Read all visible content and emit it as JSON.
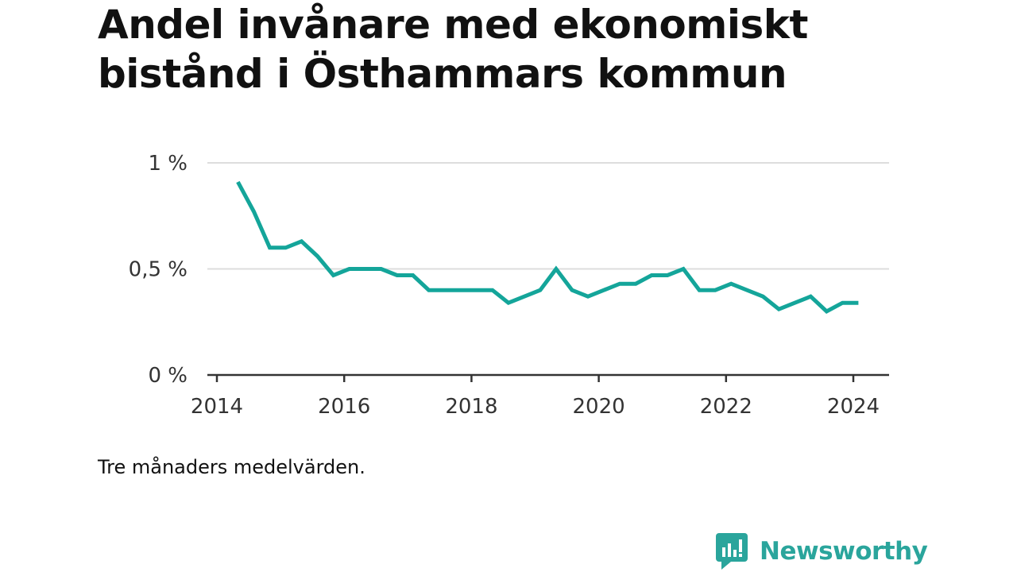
{
  "title": "Andel invånare med ekonomiskt bistånd i Östhammars kommun",
  "note": "Tre månaders medelvärden.",
  "brand": "Newsworthy",
  "colors": {
    "line": "#14a59a",
    "grid": "#dddddd",
    "axis": "#333333",
    "brand": "#2aa59c"
  },
  "chart_data": {
    "type": "line",
    "title": "Andel invånare med ekonomiskt bistånd i Östhammars kommun",
    "xlabel": "",
    "ylabel": "",
    "xlim": [
      2014,
      2024.6
    ],
    "ylim": [
      0,
      1
    ],
    "grid": true,
    "x_ticks": [
      2014,
      2016,
      2018,
      2020,
      2022,
      2024
    ],
    "x_tick_labels": [
      "2014",
      "2016",
      "2018",
      "2020",
      "2022",
      "2024"
    ],
    "y_ticks": [
      0,
      0.5,
      1
    ],
    "y_tick_labels": [
      "0 %",
      "0,5 %",
      "1 %"
    ],
    "series": [
      {
        "x": [
          2014.33,
          2014.58,
          2014.83,
          2015.08,
          2015.33,
          2015.58,
          2015.83,
          2016.08,
          2016.33,
          2016.58,
          2016.83,
          2017.08,
          2017.33,
          2017.58,
          2017.83,
          2018.08,
          2018.33,
          2018.58,
          2018.83,
          2019.08,
          2019.33,
          2019.58,
          2019.83,
          2020.08,
          2020.33,
          2020.58,
          2020.83,
          2021.08,
          2021.33,
          2021.58,
          2021.83,
          2022.08,
          2022.33,
          2022.58,
          2022.83,
          2023.08,
          2023.33,
          2023.58,
          2023.83,
          2024.08
        ],
        "values": [
          0.91,
          0.77,
          0.6,
          0.6,
          0.63,
          0.56,
          0.47,
          0.5,
          0.5,
          0.5,
          0.47,
          0.47,
          0.4,
          0.4,
          0.4,
          0.4,
          0.4,
          0.34,
          0.37,
          0.4,
          0.5,
          0.4,
          0.37,
          0.4,
          0.43,
          0.43,
          0.47,
          0.47,
          0.5,
          0.4,
          0.4,
          0.43,
          0.4,
          0.37,
          0.31,
          0.34,
          0.37,
          0.3,
          0.34,
          0.34
        ]
      }
    ]
  }
}
